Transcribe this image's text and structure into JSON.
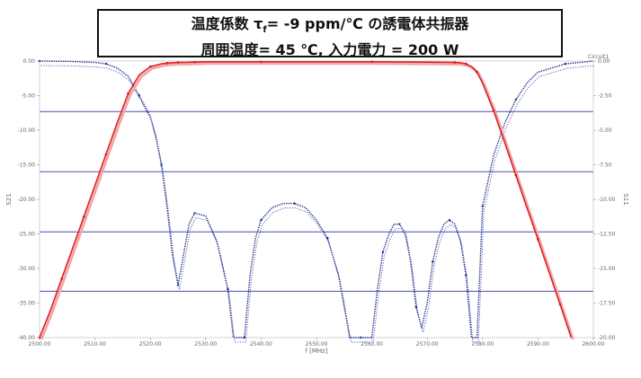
{
  "title": {
    "line1_pre": "温度係数 τ",
    "line1_sub": "f",
    "line1_post": "= -9 ppm/℃ の誘電体共振器",
    "line2": "周囲温度= 45 ℃, 入力電力 = 200 W"
  },
  "chart_data": {
    "type": "line",
    "xlabel": "f [MHz]",
    "ylabel_left": "S21",
    "ylabel_right": "S11",
    "legend_label": "Circuit1",
    "xlim": [
      2500,
      2600
    ],
    "ylim_left": [
      -40,
      0
    ],
    "ylim_right": [
      -20,
      0
    ],
    "x_ticks": [
      "2500.00",
      "2510.00",
      "2520.00",
      "2530.00",
      "2540.00",
      "2550.00",
      "2560.00",
      "2570.00",
      "2580.00",
      "2590.00",
      "2600.00"
    ],
    "y_ticks_left": [
      "0.00",
      "-5.00",
      "-10.00",
      "-15.00",
      "-20.00",
      "-25.00",
      "-30.00",
      "-35.00",
      "-40.00"
    ],
    "y_ticks_right": [
      "0.00",
      "-2.50",
      "-5.00",
      "-7.50",
      "-10.00",
      "-12.50",
      "-15.00",
      "-17.50",
      "-20.00"
    ],
    "reference_lines_left": [
      -7.3,
      -16.0,
      -24.7,
      -33.3
    ],
    "colors": {
      "s21": "#e02020",
      "s21_light": "#f0a8a8",
      "s11": "#1a2a8a",
      "s11_light": "#5060b0",
      "ref_line": "#4a4ab0"
    },
    "series": [
      {
        "name": "S21",
        "axis": "left",
        "x": [
          2500,
          2502,
          2504,
          2506,
          2508,
          2510,
          2512,
          2514,
          2516,
          2518,
          2520,
          2522,
          2523,
          2524,
          2525,
          2526,
          2528,
          2530,
          2540,
          2550,
          2560,
          2570,
          2575,
          2576,
          2577,
          2578,
          2579,
          2580,
          2582,
          2584,
          2586,
          2588,
          2590,
          2592,
          2594,
          2596
        ],
        "y": [
          -40,
          -36,
          -31.5,
          -27,
          -22.5,
          -18,
          -13.5,
          -9,
          -4.7,
          -2.0,
          -0.8,
          -0.4,
          -0.3,
          -0.25,
          -0.2,
          -0.2,
          -0.15,
          -0.1,
          -0.1,
          -0.1,
          -0.1,
          -0.15,
          -0.2,
          -0.25,
          -0.4,
          -0.8,
          -1.6,
          -3.2,
          -7.2,
          -11.8,
          -16.5,
          -21.2,
          -25.8,
          -30.5,
          -35.2,
          -40
        ]
      },
      {
        "name": "S11",
        "axis": "right",
        "x": [
          2500,
          2505,
          2510,
          2512,
          2514,
          2516,
          2518,
          2520,
          2521,
          2522,
          2523,
          2524,
          2525,
          2526,
          2527,
          2528,
          2530,
          2532,
          2534,
          2535,
          2536,
          2537,
          2538,
          2539,
          2540,
          2542,
          2544,
          2546,
          2548,
          2550,
          2552,
          2554,
          2556,
          2558,
          2560,
          2561,
          2562,
          2563,
          2564,
          2565,
          2566,
          2567,
          2568,
          2569,
          2570,
          2571,
          2572,
          2573,
          2574,
          2575,
          2576,
          2577,
          2578,
          2579,
          2580,
          2582,
          2584,
          2586,
          2588,
          2590,
          2595,
          2600
        ],
        "y": [
          0,
          -0.02,
          -0.1,
          -0.2,
          -0.5,
          -1.1,
          -2.5,
          -4.0,
          -5.5,
          -7.5,
          -10.5,
          -14.0,
          -16.2,
          -14.0,
          -11.8,
          -11.0,
          -11.2,
          -13.0,
          -16.5,
          -20,
          -20,
          -20,
          -15.5,
          -12.8,
          -11.5,
          -10.6,
          -10.3,
          -10.3,
          -10.6,
          -11.5,
          -12.8,
          -15.5,
          -20,
          -20,
          -20,
          -16.5,
          -13.8,
          -12.6,
          -11.8,
          -11.8,
          -12.4,
          -14.5,
          -17.8,
          -19.3,
          -17.5,
          -14.5,
          -12.8,
          -11.8,
          -11.5,
          -11.8,
          -13.0,
          -15.5,
          -20,
          -20,
          -10.5,
          -6.8,
          -4.5,
          -2.8,
          -1.6,
          -0.8,
          -0.2,
          0
        ]
      }
    ]
  }
}
